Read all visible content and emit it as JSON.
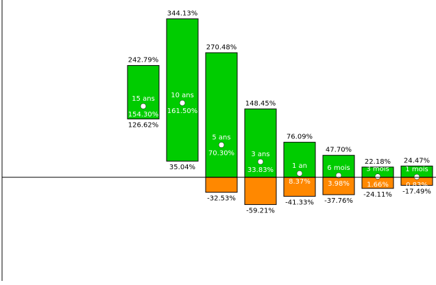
{
  "chart_data": {
    "type": "range-bar",
    "categories": [
      "15 ans",
      "10 ans",
      "5 ans",
      "3 ans",
      "1 an",
      "6 mois",
      "3 mois",
      "1 mois"
    ],
    "max": {
      "values": [
        242.79,
        344.13,
        270.48,
        148.45,
        76.09,
        47.7,
        22.18,
        24.47
      ],
      "value_labels": [
        "242.79%",
        "344.13%",
        "270.48%",
        "148.45%",
        "76.09%",
        "47.70%",
        "22.18%",
        "24.47%"
      ]
    },
    "min": {
      "values": [
        126.62,
        35.04,
        -32.53,
        -59.21,
        -41.33,
        -37.76,
        -24.11,
        -17.49
      ],
      "value_labels": [
        "126.62%",
        "35.04%",
        "-32.53%",
        "-59.21%",
        "-41.33%",
        "-37.76%",
        "-24.11%",
        "-17.49%"
      ]
    },
    "median": {
      "values": [
        154.3,
        161.5,
        70.3,
        33.83,
        8.37,
        3.98,
        1.66,
        0.83
      ],
      "value_labels": [
        "154.30%",
        "161.50%",
        "70.30%",
        "33.83%",
        "8.37%",
        "3.98%",
        "1.66%",
        "0.83%"
      ]
    },
    "positive_color": "#00cc00",
    "negative_color": "#ff8800",
    "ylim": [
      -225,
      385
    ]
  }
}
